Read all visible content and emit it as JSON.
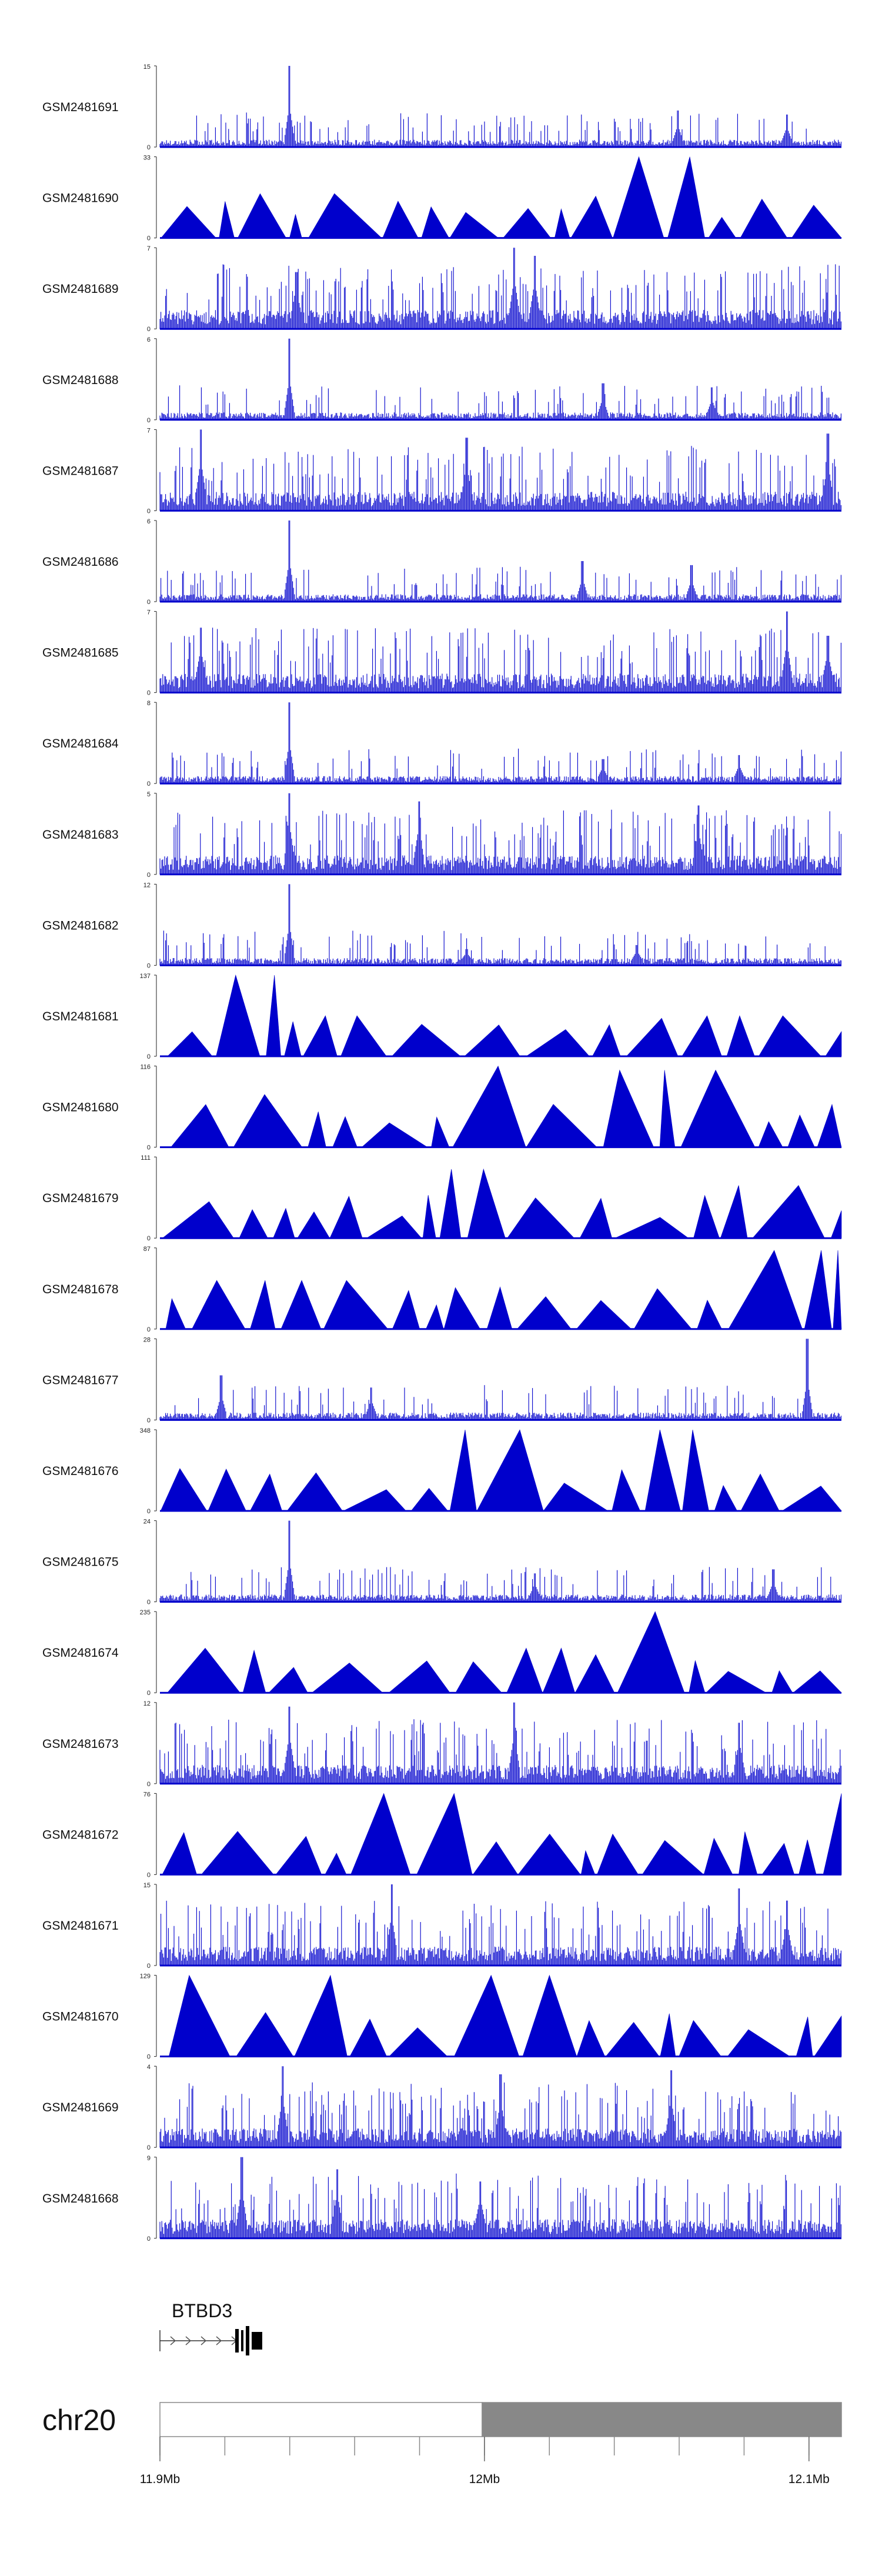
{
  "chart_data": {
    "type": "genome-browser-tracks",
    "chromosome": "chr20",
    "gene": "BTBD3",
    "region": {
      "start": 11900000,
      "end": 12110000
    },
    "axis_ticks": [
      {
        "pos": 11900000,
        "label": "11.9Mb"
      },
      {
        "pos": 12000000,
        "label": "12Mb"
      },
      {
        "pos": 12100000,
        "label": "12.1Mb"
      }
    ],
    "track_color": "#0000cc",
    "tracks": [
      {
        "name": "GSM2481691",
        "ymax": "15",
        "style": "spiky",
        "peaks": [
          [
            0.19,
            1.0
          ],
          [
            0.76,
            0.45
          ],
          [
            0.92,
            0.4
          ]
        ]
      },
      {
        "name": "GSM2481690",
        "ymax": "33",
        "style": "triangles",
        "peaks": [
          [
            0.76,
            1.0
          ],
          [
            0.12,
            0.35
          ],
          [
            0.95,
            0.4
          ]
        ]
      },
      {
        "name": "GSM2481689",
        "ymax": "7",
        "style": "dense",
        "peaks": [
          [
            0.52,
            1.0
          ],
          [
            0.2,
            0.7
          ],
          [
            0.55,
            0.9
          ]
        ]
      },
      {
        "name": "GSM2481688",
        "ymax": "6",
        "style": "spiky",
        "peaks": [
          [
            0.19,
            1.0
          ],
          [
            0.65,
            0.45
          ],
          [
            0.81,
            0.4
          ]
        ]
      },
      {
        "name": "GSM2481687",
        "ymax": "7",
        "style": "dense",
        "peaks": [
          [
            0.06,
            1.0
          ],
          [
            0.45,
            0.9
          ],
          [
            0.98,
            0.95
          ]
        ]
      },
      {
        "name": "GSM2481686",
        "ymax": "6",
        "style": "spiky",
        "peaks": [
          [
            0.19,
            1.0
          ],
          [
            0.62,
            0.5
          ],
          [
            0.78,
            0.45
          ]
        ]
      },
      {
        "name": "GSM2481685",
        "ymax": "7",
        "style": "dense",
        "peaks": [
          [
            0.06,
            0.8
          ],
          [
            0.92,
            1.0
          ],
          [
            0.98,
            0.7
          ]
        ]
      },
      {
        "name": "GSM2481684",
        "ymax": "8",
        "style": "spiky",
        "peaks": [
          [
            0.19,
            1.0
          ],
          [
            0.85,
            0.35
          ],
          [
            0.65,
            0.3
          ]
        ]
      },
      {
        "name": "GSM2481683",
        "ymax": "5",
        "style": "dense",
        "peaks": [
          [
            0.19,
            1.0
          ],
          [
            0.38,
            0.9
          ],
          [
            0.79,
            0.85
          ]
        ]
      },
      {
        "name": "GSM2481682",
        "ymax": "12",
        "style": "spiky",
        "peaks": [
          [
            0.19,
            1.0
          ],
          [
            0.7,
            0.25
          ],
          [
            0.45,
            0.2
          ]
        ]
      },
      {
        "name": "GSM2481681",
        "ymax": "137",
        "style": "triangles",
        "peaks": [
          [
            0.16,
            1.0
          ],
          [
            0.27,
            0.5
          ],
          [
            0.83,
            0.5
          ]
        ]
      },
      {
        "name": "GSM2481680",
        "ymax": "116",
        "style": "triangles",
        "peaks": [
          [
            0.47,
            1.0
          ],
          [
            0.72,
            0.95
          ],
          [
            0.16,
            0.65
          ]
        ]
      },
      {
        "name": "GSM2481679",
        "ymax": "111",
        "style": "triangles",
        "peaks": [
          [
            0.45,
            0.85
          ],
          [
            0.88,
            0.65
          ],
          [
            0.2,
            0.3
          ]
        ]
      },
      {
        "name": "GSM2481678",
        "ymax": "87",
        "style": "triangles",
        "peaks": [
          [
            1.0,
            0.97
          ],
          [
            0.14,
            0.6
          ],
          [
            0.21,
            0.6
          ]
        ]
      },
      {
        "name": "GSM2481677",
        "ymax": "28",
        "style": "spiky",
        "peaks": [
          [
            0.95,
            1.0
          ],
          [
            0.09,
            0.55
          ],
          [
            0.31,
            0.4
          ]
        ]
      },
      {
        "name": "GSM2481676",
        "ymax": "348",
        "style": "triangles",
        "peaks": [
          [
            0.47,
            1.0
          ],
          [
            0.76,
            1.0
          ],
          [
            0.08,
            0.5
          ]
        ]
      },
      {
        "name": "GSM2481675",
        "ymax": "24",
        "style": "spiky",
        "peaks": [
          [
            0.19,
            1.0
          ],
          [
            0.9,
            0.4
          ],
          [
            0.55,
            0.35
          ]
        ]
      },
      {
        "name": "GSM2481674",
        "ymax": "235",
        "style": "triangles",
        "peaks": [
          [
            0.72,
            1.0
          ],
          [
            0.56,
            0.55
          ],
          [
            0.1,
            0.55
          ]
        ]
      },
      {
        "name": "GSM2481673",
        "ymax": "12",
        "style": "dense",
        "peaks": [
          [
            0.52,
            1.0
          ],
          [
            0.19,
            0.95
          ],
          [
            0.85,
            0.75
          ]
        ]
      },
      {
        "name": "GSM2481672",
        "ymax": "76",
        "style": "triangles",
        "peaks": [
          [
            0.4,
            1.0
          ],
          [
            0.99,
            1.0
          ],
          [
            0.65,
            0.5
          ]
        ]
      },
      {
        "name": "GSM2481671",
        "ymax": "15",
        "style": "dense",
        "peaks": [
          [
            0.34,
            1.0
          ],
          [
            0.85,
            0.95
          ],
          [
            0.92,
            0.8
          ]
        ]
      },
      {
        "name": "GSM2481670",
        "ymax": "129",
        "style": "triangles",
        "peaks": [
          [
            0.06,
            1.0
          ],
          [
            0.25,
            1.0
          ],
          [
            0.57,
            1.0
          ]
        ]
      },
      {
        "name": "GSM2481669",
        "ymax": "4",
        "style": "dense",
        "peaks": [
          [
            0.18,
            1.0
          ],
          [
            0.5,
            0.9
          ],
          [
            0.75,
            0.95
          ]
        ]
      },
      {
        "name": "GSM2481668",
        "ymax": "9",
        "style": "dense",
        "peaks": [
          [
            0.12,
            1.0
          ],
          [
            0.26,
            0.85
          ],
          [
            0.47,
            0.7
          ]
        ]
      }
    ]
  }
}
